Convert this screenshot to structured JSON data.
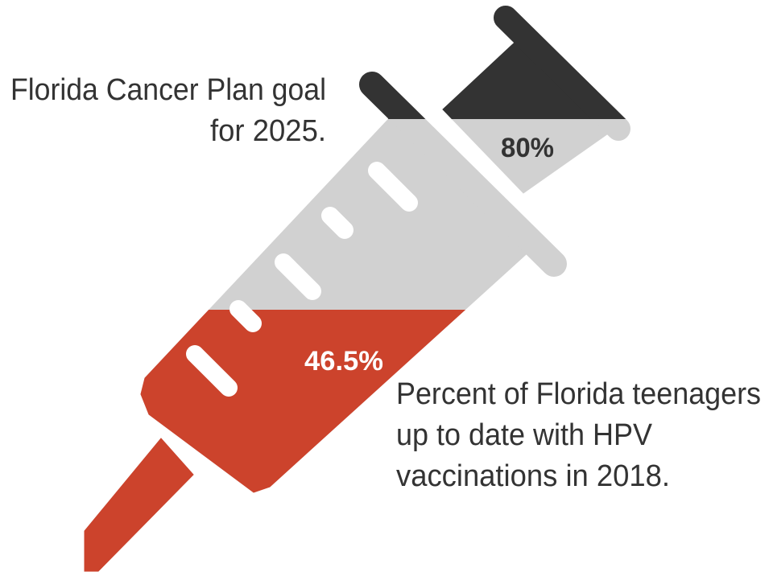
{
  "goal": {
    "value": "80%",
    "label_lines": [
      "Florida Cancer Plan goal",
      "for 2025."
    ]
  },
  "current": {
    "value": "46.5%",
    "label_lines": [
      "Percent of Florida teenagers",
      "up to date with HPV",
      "vaccinations in 2018."
    ]
  }
}
